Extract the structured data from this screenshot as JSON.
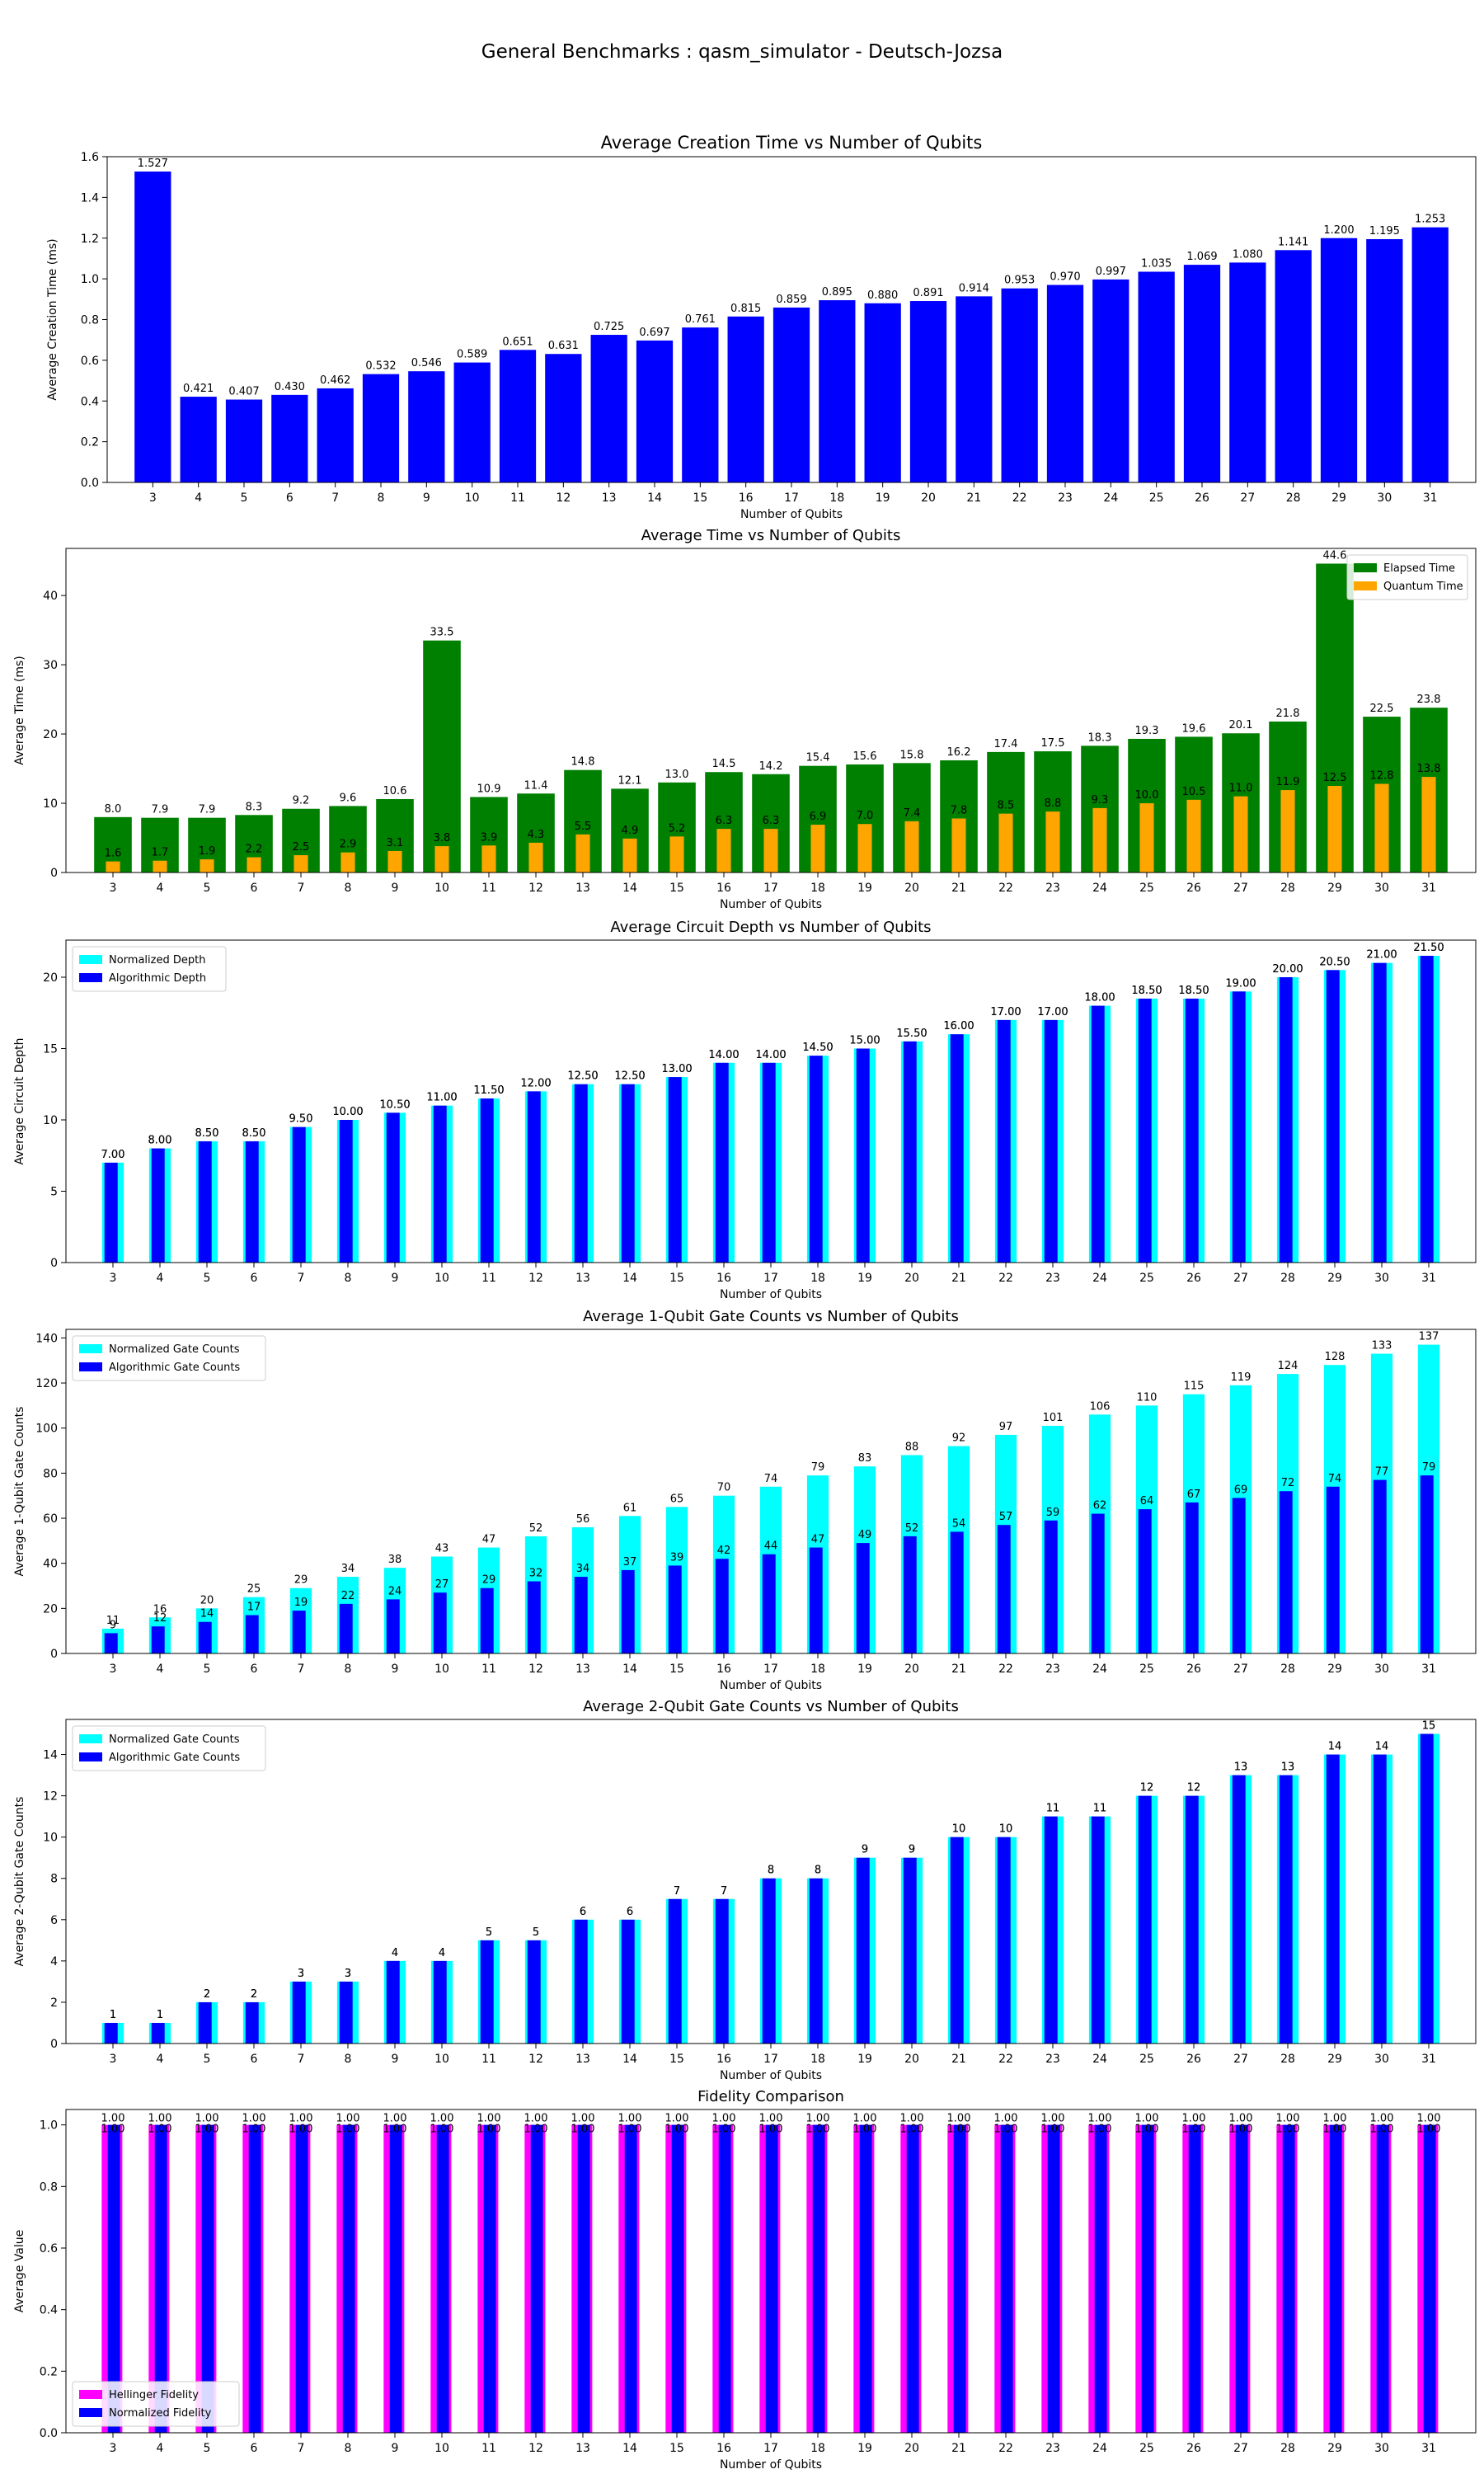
{
  "figure_title": "General Benchmarks : qasm_simulator - Deutsch-Jozsa",
  "chart_data": [
    {
      "type": "bar",
      "title": "Average Creation Time vs Number of Qubits",
      "xlabel": "Number of Qubits",
      "ylabel": "Average Creation Time (ms)",
      "categories": [
        "3",
        "4",
        "5",
        "6",
        "7",
        "8",
        "9",
        "10",
        "11",
        "12",
        "13",
        "14",
        "15",
        "16",
        "17",
        "18",
        "19",
        "20",
        "21",
        "22",
        "23",
        "24",
        "25",
        "26",
        "27",
        "28",
        "29",
        "30",
        "31"
      ],
      "ylim": [
        0,
        1.6
      ],
      "yticks": [
        0.0,
        0.2,
        0.4,
        0.6,
        0.8,
        1.0,
        1.2,
        1.4,
        1.6
      ],
      "ytick_labels": [
        "0.0",
        "0.2",
        "0.4",
        "0.6",
        "0.8",
        "1.0",
        "1.2",
        "1.4",
        "1.6"
      ],
      "series": [
        {
          "name": "",
          "color": "#0000ff",
          "values": [
            1.527,
            0.421,
            0.407,
            0.43,
            0.462,
            0.532,
            0.546,
            0.589,
            0.651,
            0.631,
            0.725,
            0.697,
            0.761,
            0.815,
            0.859,
            0.895,
            0.88,
            0.891,
            0.914,
            0.953,
            0.97,
            0.997,
            1.035,
            1.069,
            1.08,
            1.141,
            1.2,
            1.195,
            1.253
          ],
          "labels": [
            "1.527",
            "0.421",
            "0.407",
            "0.430",
            "0.462",
            "0.532",
            "0.546",
            "0.589",
            "0.651",
            "0.631",
            "0.725",
            "0.697",
            "0.761",
            "0.815",
            "0.859",
            "0.895",
            "0.880",
            "0.891",
            "0.914",
            "0.953",
            "0.970",
            "0.997",
            "1.035",
            "1.069",
            "1.080",
            "1.141",
            "1.200",
            "1.195",
            "1.253"
          ]
        }
      ],
      "legend": null
    },
    {
      "type": "bar",
      "title": "Average Time vs Number of Qubits",
      "xlabel": "Number of Qubits",
      "ylabel": "Average Time (ms)",
      "categories": [
        "3",
        "4",
        "5",
        "6",
        "7",
        "8",
        "9",
        "10",
        "11",
        "12",
        "13",
        "14",
        "15",
        "16",
        "17",
        "18",
        "19",
        "20",
        "21",
        "22",
        "23",
        "24",
        "25",
        "26",
        "27",
        "28",
        "29",
        "30",
        "31"
      ],
      "ylim": [
        0,
        46.8
      ],
      "yticks": [
        0,
        10,
        20,
        30,
        40
      ],
      "ytick_labels": [
        "0",
        "10",
        "20",
        "30",
        "40"
      ],
      "series": [
        {
          "name": "Elapsed Time",
          "color": "#008000",
          "values": [
            8.0,
            7.9,
            7.9,
            8.3,
            9.2,
            9.6,
            10.6,
            33.5,
            10.9,
            11.4,
            14.8,
            12.1,
            13.0,
            14.5,
            14.2,
            15.4,
            15.6,
            15.8,
            16.2,
            17.4,
            17.5,
            18.3,
            19.3,
            19.6,
            20.1,
            21.8,
            44.6,
            22.5,
            23.8
          ],
          "labels": [
            "8.0",
            "7.9",
            "7.9",
            "8.3",
            "9.2",
            "9.6",
            "10.6",
            "33.5",
            "10.9",
            "11.4",
            "14.8",
            "12.1",
            "13.0",
            "14.5",
            "14.2",
            "15.4",
            "15.6",
            "15.8",
            "16.2",
            "17.4",
            "17.5",
            "18.3",
            "19.3",
            "19.6",
            "20.1",
            "21.8",
            "44.6",
            "22.5",
            "23.8"
          ]
        },
        {
          "name": "Quantum Time",
          "color": "#ffa500",
          "values": [
            1.6,
            1.7,
            1.9,
            2.2,
            2.5,
            2.9,
            3.1,
            3.8,
            3.9,
            4.3,
            5.5,
            4.9,
            5.2,
            6.3,
            6.3,
            6.9,
            7.0,
            7.4,
            7.8,
            8.5,
            8.8,
            9.3,
            10.0,
            10.5,
            11.0,
            11.9,
            12.5,
            12.8,
            13.8
          ],
          "labels": [
            "1.6",
            "1.7",
            "1.9",
            "2.2",
            "2.5",
            "2.9",
            "3.1",
            "3.8",
            "3.9",
            "4.3",
            "5.5",
            "4.9",
            "5.2",
            "6.3",
            "6.3",
            "6.9",
            "7.0",
            "7.4",
            "7.8",
            "8.5",
            "8.8",
            "9.3",
            "10.0",
            "10.5",
            "11.0",
            "11.9",
            "12.5",
            "12.8",
            "13.8"
          ]
        }
      ],
      "layout": "overlap",
      "legend": "top-right"
    },
    {
      "type": "bar",
      "title": "Average Circuit Depth vs Number of Qubits",
      "xlabel": "Number of Qubits",
      "ylabel": "Average Circuit Depth",
      "categories": [
        "3",
        "4",
        "5",
        "6",
        "7",
        "8",
        "9",
        "10",
        "11",
        "12",
        "13",
        "14",
        "15",
        "16",
        "17",
        "18",
        "19",
        "20",
        "21",
        "22",
        "23",
        "24",
        "25",
        "26",
        "27",
        "28",
        "29",
        "30",
        "31"
      ],
      "ylim": [
        0,
        22.6
      ],
      "yticks": [
        0,
        5,
        10,
        15,
        20
      ],
      "ytick_labels": [
        "0",
        "5",
        "10",
        "15",
        "20"
      ],
      "series": [
        {
          "name": "Normalized Depth",
          "color": "#00ffff",
          "values": [
            7.0,
            8.0,
            8.5,
            8.5,
            9.5,
            10.0,
            10.5,
            11.0,
            11.5,
            12.0,
            12.5,
            12.5,
            13.0,
            14.0,
            14.0,
            14.5,
            15.0,
            15.5,
            16.0,
            17.0,
            17.0,
            18.0,
            18.5,
            18.5,
            19.0,
            20.0,
            20.5,
            21.0,
            21.5
          ],
          "labels": [
            "7.00",
            "8.00",
            "8.50",
            "8.50",
            "9.50",
            "10.00",
            "10.50",
            "11.00",
            "11.50",
            "12.00",
            "12.50",
            "12.50",
            "13.00",
            "14.00",
            "14.00",
            "14.50",
            "15.00",
            "15.50",
            "16.00",
            "17.00",
            "17.00",
            "18.00",
            "18.50",
            "18.50",
            "19.00",
            "20.00",
            "20.50",
            "21.00",
            "21.50"
          ]
        },
        {
          "name": "Algorithmic Depth",
          "color": "#0000ff",
          "values": [
            7.0,
            8.0,
            8.5,
            8.5,
            9.5,
            10.0,
            10.5,
            11.0,
            11.5,
            12.0,
            12.5,
            12.5,
            13.0,
            14.0,
            14.0,
            14.5,
            15.0,
            15.5,
            16.0,
            17.0,
            17.0,
            18.0,
            18.5,
            18.5,
            19.0,
            20.0,
            20.5,
            21.0,
            21.5
          ],
          "labels": [
            "7.00",
            "8.00",
            "8.50",
            "8.50",
            "9.50",
            "10.00",
            "10.50",
            "11.00",
            "11.50",
            "12.00",
            "12.50",
            "12.50",
            "13.00",
            "14.00",
            "14.00",
            "14.50",
            "15.00",
            "15.50",
            "16.00",
            "17.00",
            "17.00",
            "18.00",
            "18.50",
            "18.50",
            "19.00",
            "20.00",
            "20.50",
            "21.00",
            "21.50"
          ]
        }
      ],
      "layout": "wide-narrow",
      "legend": "top-left"
    },
    {
      "type": "bar",
      "title": "Average 1-Qubit Gate Counts vs Number of Qubits",
      "xlabel": "Number of Qubits",
      "ylabel": "Average 1-Qubit Gate Counts",
      "categories": [
        "3",
        "4",
        "5",
        "6",
        "7",
        "8",
        "9",
        "10",
        "11",
        "12",
        "13",
        "14",
        "15",
        "16",
        "17",
        "18",
        "19",
        "20",
        "21",
        "22",
        "23",
        "24",
        "25",
        "26",
        "27",
        "28",
        "29",
        "30",
        "31"
      ],
      "ylim": [
        0,
        143.8
      ],
      "yticks": [
        0,
        20,
        40,
        60,
        80,
        100,
        120,
        140
      ],
      "ytick_labels": [
        "0",
        "20",
        "40",
        "60",
        "80",
        "100",
        "120",
        "140"
      ],
      "series": [
        {
          "name": "Normalized Gate Counts",
          "color": "#00ffff",
          "values": [
            11,
            16,
            20,
            25,
            29,
            34,
            38,
            43,
            47,
            52,
            56,
            61,
            65,
            70,
            74,
            79,
            83,
            88,
            92,
            97,
            101,
            106,
            110,
            115,
            119,
            124,
            128,
            133,
            137
          ],
          "labels": [
            "11",
            "16",
            "20",
            "25",
            "29",
            "34",
            "38",
            "43",
            "47",
            "52",
            "56",
            "61",
            "65",
            "70",
            "74",
            "79",
            "83",
            "88",
            "92",
            "97",
            "101",
            "106",
            "110",
            "115",
            "119",
            "124",
            "128",
            "133",
            "137"
          ]
        },
        {
          "name": "Algorithmic Gate Counts",
          "color": "#0000ff",
          "values": [
            9,
            12,
            14,
            17,
            19,
            22,
            24,
            27,
            29,
            32,
            34,
            37,
            39,
            42,
            44,
            47,
            49,
            52,
            54,
            57,
            59,
            62,
            64,
            67,
            69,
            72,
            74,
            77,
            79
          ],
          "labels": [
            "9",
            "12",
            "14",
            "17",
            "19",
            "22",
            "24",
            "27",
            "29",
            "32",
            "34",
            "37",
            "39",
            "42",
            "44",
            "47",
            "49",
            "52",
            "54",
            "57",
            "59",
            "62",
            "64",
            "67",
            "69",
            "72",
            "74",
            "77",
            "79"
          ]
        }
      ],
      "layout": "wide-narrow",
      "legend": "top-left"
    },
    {
      "type": "bar",
      "title": "Average 2-Qubit Gate Counts vs Number of Qubits",
      "xlabel": "Number of Qubits",
      "ylabel": "Average 2-Qubit Gate Counts",
      "categories": [
        "3",
        "4",
        "5",
        "6",
        "7",
        "8",
        "9",
        "10",
        "11",
        "12",
        "13",
        "14",
        "15",
        "16",
        "17",
        "18",
        "19",
        "20",
        "21",
        "22",
        "23",
        "24",
        "25",
        "26",
        "27",
        "28",
        "29",
        "30",
        "31"
      ],
      "ylim": [
        0,
        15.7
      ],
      "yticks": [
        0,
        2,
        4,
        6,
        8,
        10,
        12,
        14
      ],
      "ytick_labels": [
        "0",
        "2",
        "4",
        "6",
        "8",
        "10",
        "12",
        "14"
      ],
      "series": [
        {
          "name": "Normalized Gate Counts",
          "color": "#00ffff",
          "values": [
            1,
            1,
            2,
            2,
            3,
            3,
            4,
            4,
            5,
            5,
            6,
            6,
            7,
            7,
            8,
            8,
            9,
            9,
            10,
            10,
            11,
            11,
            12,
            12,
            13,
            13,
            14,
            14,
            15
          ],
          "labels": [
            "1",
            "1",
            "2",
            "2",
            "3",
            "3",
            "4",
            "4",
            "5",
            "5",
            "6",
            "6",
            "7",
            "7",
            "8",
            "8",
            "9",
            "9",
            "10",
            "10",
            "11",
            "11",
            "12",
            "12",
            "13",
            "13",
            "14",
            "14",
            "15"
          ]
        },
        {
          "name": "Algorithmic Gate Counts",
          "color": "#0000ff",
          "values": [
            1,
            1,
            2,
            2,
            3,
            3,
            4,
            4,
            5,
            5,
            6,
            6,
            7,
            7,
            8,
            8,
            9,
            9,
            10,
            10,
            11,
            11,
            12,
            12,
            13,
            13,
            14,
            14,
            15
          ],
          "labels": [
            "1",
            "1",
            "2",
            "2",
            "3",
            "3",
            "4",
            "4",
            "5",
            "5",
            "6",
            "6",
            "7",
            "7",
            "8",
            "8",
            "9",
            "9",
            "10",
            "10",
            "11",
            "11",
            "12",
            "12",
            "13",
            "13",
            "14",
            "14",
            "15"
          ]
        }
      ],
      "layout": "wide-narrow",
      "legend": "top-left"
    },
    {
      "type": "bar",
      "title": "Fidelity Comparison",
      "xlabel": "Number of Qubits",
      "ylabel": "Average Value",
      "categories": [
        "3",
        "4",
        "5",
        "6",
        "7",
        "8",
        "9",
        "10",
        "11",
        "12",
        "13",
        "14",
        "15",
        "16",
        "17",
        "18",
        "19",
        "20",
        "21",
        "22",
        "23",
        "24",
        "25",
        "26",
        "27",
        "28",
        "29",
        "30",
        "31"
      ],
      "ylim": [
        0,
        1.05
      ],
      "yticks": [
        0.0,
        0.2,
        0.4,
        0.6,
        0.8,
        1.0
      ],
      "ytick_labels": [
        "0.0",
        "0.2",
        "0.4",
        "0.6",
        "0.8",
        "1.0"
      ],
      "series": [
        {
          "name": "Hellinger Fidelity",
          "color": "#ff00ff",
          "values": [
            1.0,
            1.0,
            1.0,
            1.0,
            1.0,
            1.0,
            1.0,
            1.0,
            1.0,
            1.0,
            1.0,
            1.0,
            1.0,
            1.0,
            1.0,
            1.0,
            1.0,
            1.0,
            1.0,
            1.0,
            1.0,
            1.0,
            1.0,
            1.0,
            1.0,
            1.0,
            1.0,
            1.0,
            1.0
          ],
          "labels": [
            "1.00",
            "1.00",
            "1.00",
            "1.00",
            "1.00",
            "1.00",
            "1.00",
            "1.00",
            "1.00",
            "1.00",
            "1.00",
            "1.00",
            "1.00",
            "1.00",
            "1.00",
            "1.00",
            "1.00",
            "1.00",
            "1.00",
            "1.00",
            "1.00",
            "1.00",
            "1.00",
            "1.00",
            "1.00",
            "1.00",
            "1.00",
            "1.00",
            "1.00"
          ]
        },
        {
          "name": "Normalized Fidelity",
          "color": "#0000ff",
          "values": [
            1.0,
            1.0,
            1.0,
            1.0,
            1.0,
            1.0,
            1.0,
            1.0,
            1.0,
            1.0,
            1.0,
            1.0,
            1.0,
            1.0,
            1.0,
            1.0,
            1.0,
            1.0,
            1.0,
            1.0,
            1.0,
            1.0,
            1.0,
            1.0,
            1.0,
            1.0,
            1.0,
            1.0,
            1.0
          ],
          "labels": [
            "1.00",
            "1.00",
            "1.00",
            "1.00",
            "1.00",
            "1.00",
            "1.00",
            "1.00",
            "1.00",
            "1.00",
            "1.00",
            "1.00",
            "1.00",
            "1.00",
            "1.00",
            "1.00",
            "1.00",
            "1.00",
            "1.00",
            "1.00",
            "1.00",
            "1.00",
            "1.00",
            "1.00",
            "1.00",
            "1.00",
            "1.00",
            "1.00",
            "1.00"
          ]
        }
      ],
      "layout": "fidelity",
      "legend": "bottom-left"
    }
  ]
}
